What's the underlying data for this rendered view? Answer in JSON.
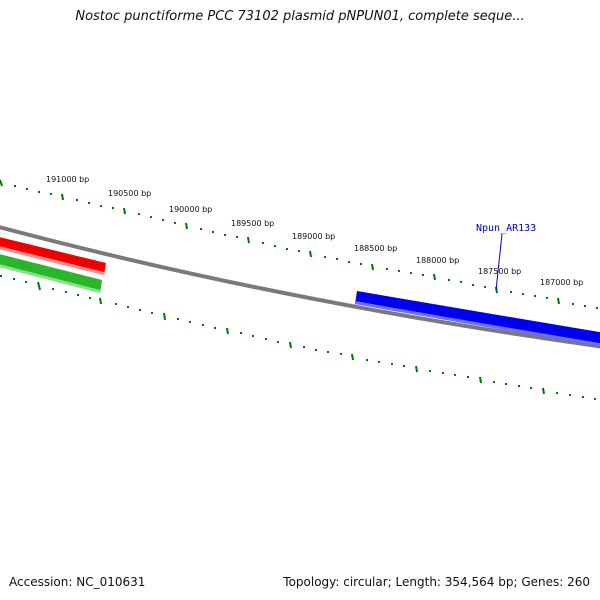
{
  "title": "Nostoc punctiforme PCC 73102 plasmid pNPUN01, complete seque...",
  "footer": {
    "accession": "Accession: NC_010631",
    "summary": "Topology: circular; Length: 354,564 bp; Genes: 260"
  },
  "scale_labels": [
    "191000 bp",
    "190500 bp",
    "190000 bp",
    "189500 bp",
    "189000 bp",
    "188500 bp",
    "188000 bp",
    "187500 bp",
    "187000 bp"
  ],
  "gene_labels": [
    "Npun_AR133"
  ],
  "colors": {
    "backbone": "#7a7a7a",
    "gene_red": "#ee0000",
    "gene_green": "#33bb33",
    "gene_blue": "#0000ee",
    "ticks": "#007700",
    "gene_label": "#0000cc"
  }
}
